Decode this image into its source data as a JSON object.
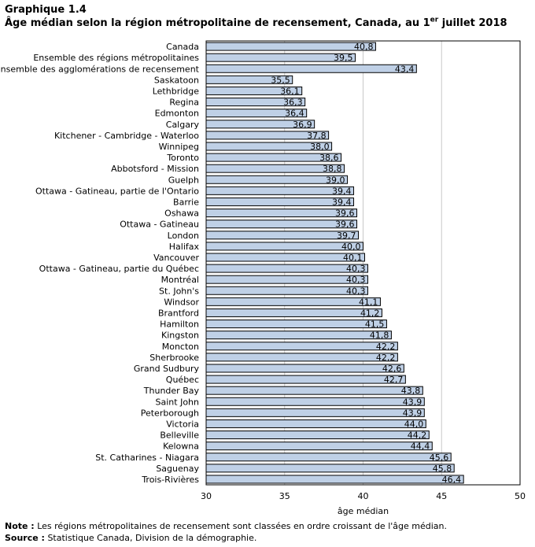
{
  "chart_data": {
    "type": "bar",
    "orientation": "horizontal",
    "kicker": "Graphique 1.4",
    "title_main": "Âge médian selon la région métropolitaine de recensement, Canada, au 1",
    "title_sup": "er",
    "title_tail": " juillet 2018",
    "xlabel": "âge médian",
    "xlim": [
      30,
      50
    ],
    "xticks": [
      30,
      35,
      40,
      45,
      50
    ],
    "grid": true,
    "bar_color": "#bfd0e6",
    "categories": [
      "Canada",
      "Ensemble des régions métropolitaines",
      "Ensemble des agglomérations de recensement",
      "Saskatoon",
      "Lethbridge",
      "Regina",
      "Edmonton",
      "Calgary",
      "Kitchener - Cambridge - Waterloo",
      "Winnipeg",
      "Toronto",
      "Abbotsford - Mission",
      "Guelph",
      "Ottawa - Gatineau, partie de l'Ontario",
      "Barrie",
      "Oshawa",
      "Ottawa - Gatineau",
      "London",
      "Halifax",
      "Vancouver",
      "Ottawa - Gatineau, partie du Québec",
      "Montréal",
      "St. John's",
      "Windsor",
      "Brantford",
      "Hamilton",
      "Kingston",
      "Moncton",
      "Sherbrooke",
      "Grand Sudbury",
      "Québec",
      "Thunder Bay",
      "Saint John",
      "Peterborough",
      "Victoria",
      "Belleville",
      "Kelowna",
      "St. Catharines - Niagara",
      "Saguenay",
      "Trois-Rivières"
    ],
    "values": [
      40.8,
      39.5,
      43.4,
      35.5,
      36.1,
      36.3,
      36.4,
      36.9,
      37.8,
      38.0,
      38.6,
      38.8,
      39.0,
      39.4,
      39.4,
      39.6,
      39.6,
      39.7,
      40.0,
      40.1,
      40.3,
      40.3,
      40.3,
      41.1,
      41.2,
      41.5,
      41.8,
      42.2,
      42.2,
      42.6,
      42.7,
      43.8,
      43.9,
      43.9,
      44.0,
      44.2,
      44.4,
      45.6,
      45.8,
      46.4
    ],
    "value_labels": [
      "40,8",
      "39,5",
      "43,4",
      "35,5",
      "36,1",
      "36,3",
      "36,4",
      "36,9",
      "37,8",
      "38,0",
      "38,6",
      "38,8",
      "39,0",
      "39,4",
      "39,4",
      "39,6",
      "39,6",
      "39,7",
      "40,0",
      "40,1",
      "40,3",
      "40,3",
      "40,3",
      "41,1",
      "41,2",
      "41,5",
      "41,8",
      "42,2",
      "42,2",
      "42,6",
      "42,7",
      "43,8",
      "43,9",
      "43,9",
      "44,0",
      "44,2",
      "44,4",
      "45,6",
      "45,8",
      "46,4"
    ]
  },
  "notes": {
    "note_label": "Note :",
    "note_text": " Les régions métropolitaines de recensement sont classées en ordre croissant de l'âge médian.",
    "source_label": "Source :",
    "source_text": " Statistique Canada, Division de la démographie."
  }
}
